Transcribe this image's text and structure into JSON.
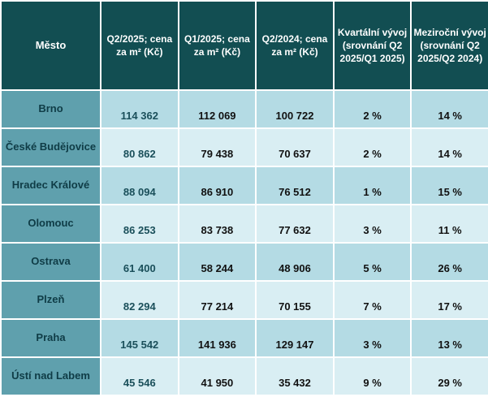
{
  "chart_data": {
    "type": "table",
    "columns": [
      "Město",
      "Q2/2025; cena za m² (Kč)",
      "Q1/2025;  cena za m² (Kč)",
      "Q2/2024; cena za m² (Kč)",
      "Kvartální vývoj (srovnání Q2 2025/Q1 2025)",
      "Meziroční vývoj (srovnání Q2 2025/Q2 2024)"
    ],
    "rows": [
      {
        "city": "Brno",
        "q2_2025": "114 362",
        "q1_2025": "112 069",
        "q2_2024": "100 722",
        "qoq": "2 %",
        "yoy": "14 %"
      },
      {
        "city": "České Budějovice",
        "q2_2025": "80 862",
        "q1_2025": "79 438",
        "q2_2024": "70 637",
        "qoq": "2 %",
        "yoy": "14 %"
      },
      {
        "city": "Hradec Králové",
        "q2_2025": "88 094",
        "q1_2025": "86 910",
        "q2_2024": "76 512",
        "qoq": "1 %",
        "yoy": "15 %"
      },
      {
        "city": "Olomouc",
        "q2_2025": "86 253",
        "q1_2025": "83 738",
        "q2_2024": "77 632",
        "qoq": "3 %",
        "yoy": "11 %"
      },
      {
        "city": "Ostrava",
        "q2_2025": "61 400",
        "q1_2025": "58 244",
        "q2_2024": "48 906",
        "qoq": "5 %",
        "yoy": "26 %"
      },
      {
        "city": "Plzeň",
        "q2_2025": "82 294",
        "q1_2025": "77 214",
        "q2_2024": "70 155",
        "qoq": "7 %",
        "yoy": "17 %"
      },
      {
        "city": "Praha",
        "q2_2025": "145 542",
        "q1_2025": "141 936",
        "q2_2024": "129 147",
        "qoq": "3 %",
        "yoy": "13 %"
      },
      {
        "city": "Ústí nad Labem",
        "q2_2025": "45 546",
        "q1_2025": "41 950",
        "q2_2024": "35 432",
        "qoq": "9 %",
        "yoy": "29 %"
      }
    ],
    "colors": {
      "header_bg": "#124e52",
      "city_bg": "#5fa0ad",
      "row_dark": "#b4dbe4",
      "row_light": "#d9eef3"
    }
  }
}
